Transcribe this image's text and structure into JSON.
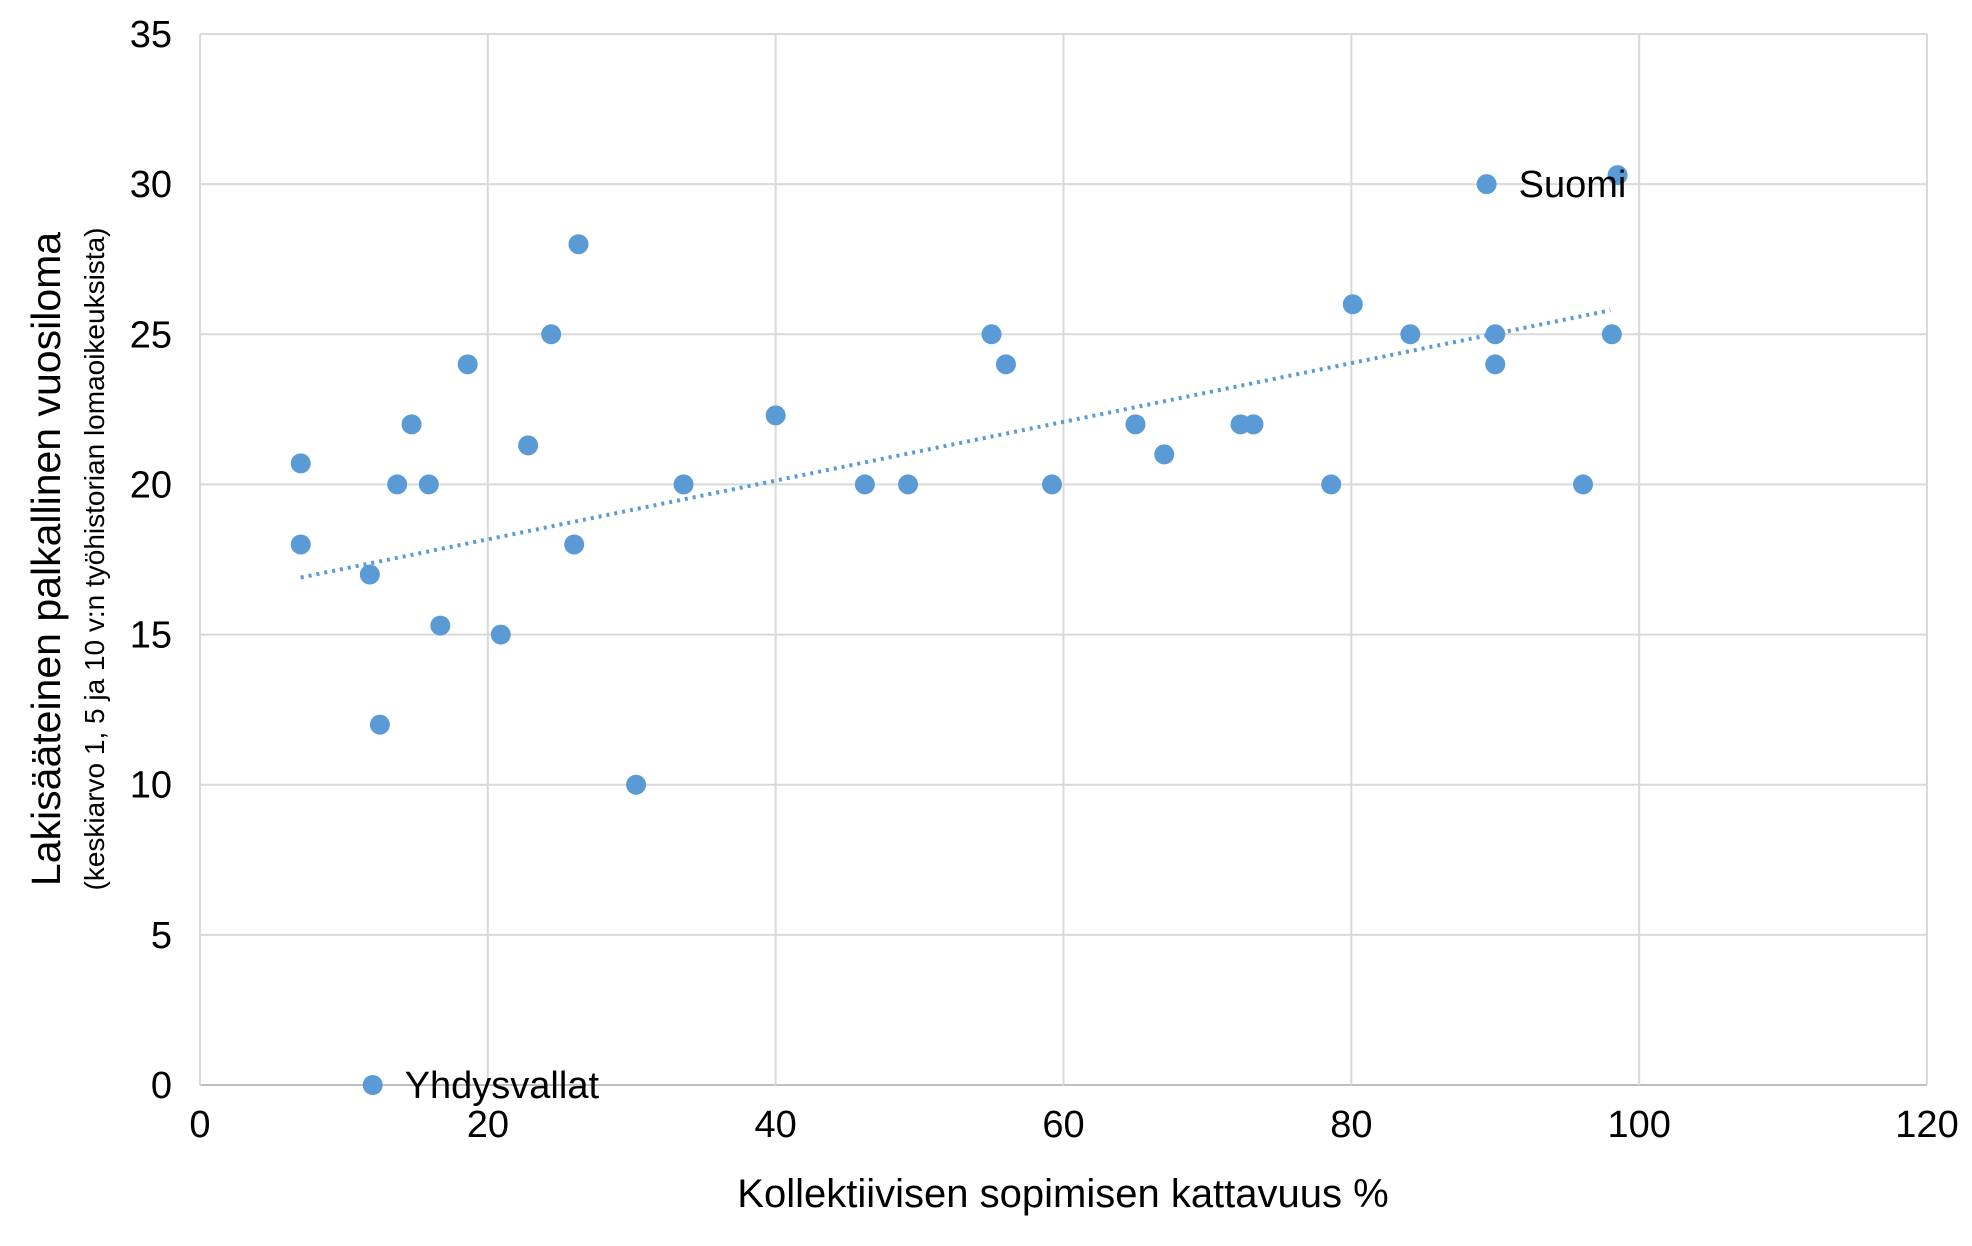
{
  "chart_data": {
    "type": "scatter",
    "title": "",
    "xlabel": "Kollektiivisen sopimisen kattavuus %",
    "ylabel": "Lakisääteinen palkallinen vuosiloma",
    "ylabel_sub": "(keskiarvo 1, 5 ja 10 v:n työhistorian lomaoikeuksista)",
    "xlim": [
      0,
      120
    ],
    "ylim": [
      0,
      35
    ],
    "xticks": [
      0,
      20,
      40,
      60,
      80,
      100,
      120
    ],
    "yticks": [
      0,
      5,
      10,
      15,
      20,
      25,
      30,
      35
    ],
    "grid": true,
    "marker_color": "#5b9bd5",
    "trendline": {
      "type": "linear",
      "style": "dotted",
      "color": "#5b9bd5",
      "x": [
        7.0,
        98.0
      ],
      "y": [
        16.9,
        25.8
      ]
    },
    "points": [
      {
        "x": 7.0,
        "y": 20.7
      },
      {
        "x": 7.0,
        "y": 18.0
      },
      {
        "x": 11.8,
        "y": 17.0
      },
      {
        "x": 12.5,
        "y": 12.0
      },
      {
        "x": 13.7,
        "y": 20.0
      },
      {
        "x": 14.7,
        "y": 22.0
      },
      {
        "x": 15.9,
        "y": 20.0
      },
      {
        "x": 16.7,
        "y": 15.3
      },
      {
        "x": 18.6,
        "y": 24.0
      },
      {
        "x": 20.9,
        "y": 15.0
      },
      {
        "x": 22.8,
        "y": 21.3
      },
      {
        "x": 24.4,
        "y": 25.0
      },
      {
        "x": 26.0,
        "y": 18.0
      },
      {
        "x": 26.3,
        "y": 28.0
      },
      {
        "x": 30.3,
        "y": 10.0
      },
      {
        "x": 33.6,
        "y": 20.0
      },
      {
        "x": 40.0,
        "y": 22.3
      },
      {
        "x": 46.2,
        "y": 20.0
      },
      {
        "x": 49.2,
        "y": 20.0
      },
      {
        "x": 55.0,
        "y": 25.0
      },
      {
        "x": 56.0,
        "y": 24.0
      },
      {
        "x": 59.2,
        "y": 20.0
      },
      {
        "x": 65.0,
        "y": 22.0
      },
      {
        "x": 67.0,
        "y": 21.0
      },
      {
        "x": 72.3,
        "y": 22.0
      },
      {
        "x": 73.2,
        "y": 22.0
      },
      {
        "x": 78.6,
        "y": 20.0
      },
      {
        "x": 80.1,
        "y": 26.0
      },
      {
        "x": 84.1,
        "y": 25.0
      },
      {
        "x": 89.4,
        "y": 30.0,
        "label": "Suomi"
      },
      {
        "x": 90.0,
        "y": 25.0
      },
      {
        "x": 90.0,
        "y": 24.0
      },
      {
        "x": 96.1,
        "y": 20.0
      },
      {
        "x": 98.1,
        "y": 25.0
      },
      {
        "x": 98.5,
        "y": 30.3
      },
      {
        "x": 12.0,
        "y": 0.0,
        "label": "Yhdysvallat"
      }
    ]
  }
}
